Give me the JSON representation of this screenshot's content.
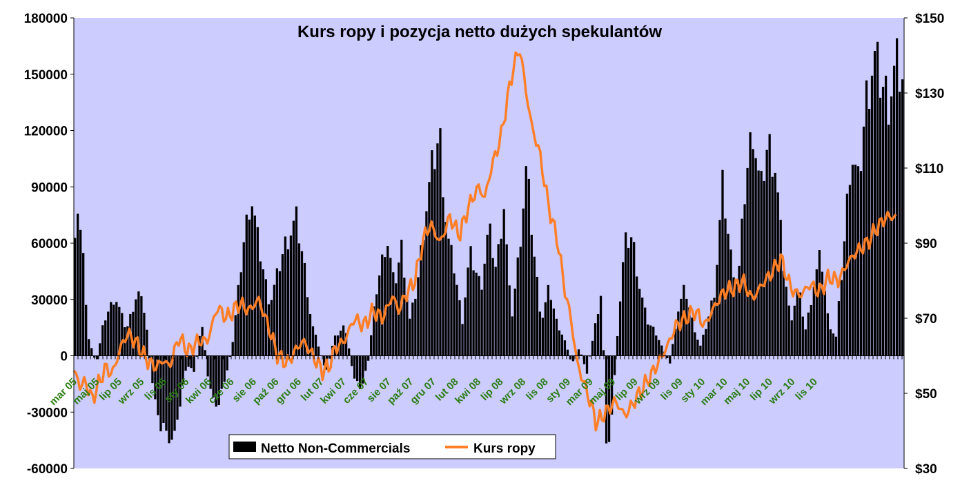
{
  "chart_data": {
    "type": "bar+line",
    "title": "Kurs ropy i pozycja netto dużych spekulantów",
    "colors": {
      "plot_background": "#ccccff",
      "bars": "#000000",
      "line": "#ff7f27",
      "x_tick_labels": "#2a7d12"
    },
    "left_axis": {
      "ticks": [
        "180000",
        "150000",
        "120000",
        "90000",
        "60000",
        "30000",
        "0",
        "-30000",
        "-60000"
      ],
      "range": [
        -60000,
        180000
      ]
    },
    "right_axis": {
      "ticks": [
        "$150",
        "$130",
        "$110",
        "$90",
        "$70",
        "$50",
        "$30"
      ],
      "range": [
        30,
        150
      ]
    },
    "x_tick_labels": [
      "mar 05",
      "maj 05",
      "lip 05",
      "wrz 05",
      "lis 05",
      "sty 06",
      "kwi 06",
      "cze 06",
      "sie 06",
      "paź 06",
      "gru 06",
      "lut 07",
      "kwi 07",
      "cze 07",
      "sie 07",
      "paź 07",
      "gru 07",
      "lut 08",
      "kwi 08",
      "lip 08",
      "wrz 08",
      "lis 08",
      "sty 09",
      "mar 09",
      "maj 09",
      "lip 09",
      "wrz 09",
      "lis 09",
      "sty 10",
      "mar 10",
      "maj 10",
      "lip 10",
      "wrz 10",
      "lis 10"
    ],
    "legend": {
      "bars_label": "Netto Non-Commercials",
      "line_label": "Kurs ropy"
    },
    "series": [
      {
        "name": "Netto Non-Commercials",
        "kind": "bar",
        "anchors": [
          [
            0,
            70000
          ],
          [
            0.005,
            88000
          ],
          [
            0.012,
            60000
          ],
          [
            0.02,
            10000
          ],
          [
            0.03,
            -5000
          ],
          [
            0.04,
            20000
          ],
          [
            0.055,
            35000
          ],
          [
            0.07,
            15000
          ],
          [
            0.085,
            38000
          ],
          [
            0.095,
            25000
          ],
          [
            0.105,
            -20000
          ],
          [
            0.115,
            -40000
          ],
          [
            0.125,
            -45000
          ],
          [
            0.13,
            -55000
          ],
          [
            0.14,
            -30000
          ],
          [
            0.15,
            -5000
          ],
          [
            0.16,
            -10000
          ],
          [
            0.17,
            20000
          ],
          [
            0.18,
            -20000
          ],
          [
            0.19,
            -30000
          ],
          [
            0.2,
            -15000
          ],
          [
            0.21,
            5000
          ],
          [
            0.225,
            65000
          ],
          [
            0.235,
            95000
          ],
          [
            0.245,
            65000
          ],
          [
            0.26,
            30000
          ],
          [
            0.28,
            65000
          ],
          [
            0.295,
            80000
          ],
          [
            0.305,
            55000
          ],
          [
            0.315,
            20000
          ],
          [
            0.325,
            5000
          ],
          [
            0.335,
            -10000
          ],
          [
            0.345,
            10000
          ],
          [
            0.36,
            18000
          ],
          [
            0.37,
            -10000
          ],
          [
            0.38,
            -20000
          ],
          [
            0.39,
            -5000
          ],
          [
            0.4,
            35000
          ],
          [
            0.415,
            70000
          ],
          [
            0.425,
            40000
          ],
          [
            0.435,
            65000
          ],
          [
            0.445,
            20000
          ],
          [
            0.455,
            40000
          ],
          [
            0.465,
            80000
          ],
          [
            0.475,
            110000
          ],
          [
            0.485,
            130000
          ],
          [
            0.495,
            70000
          ],
          [
            0.505,
            50000
          ],
          [
            0.515,
            20000
          ],
          [
            0.525,
            60000
          ],
          [
            0.54,
            40000
          ],
          [
            0.55,
            75000
          ],
          [
            0.56,
            50000
          ],
          [
            0.57,
            90000
          ],
          [
            0.58,
            20000
          ],
          [
            0.59,
            60000
          ],
          [
            0.6,
            110000
          ],
          [
            0.61,
            60000
          ],
          [
            0.62,
            20000
          ],
          [
            0.63,
            40000
          ],
          [
            0.64,
            20000
          ],
          [
            0.65,
            10000
          ],
          [
            0.66,
            -5000
          ],
          [
            0.67,
            5000
          ],
          [
            0.68,
            -10000
          ],
          [
            0.69,
            15000
          ],
          [
            0.7,
            40000
          ],
          [
            0.705,
            -45000
          ],
          [
            0.71,
            -55000
          ],
          [
            0.72,
            10000
          ],
          [
            0.73,
            65000
          ],
          [
            0.74,
            70000
          ],
          [
            0.75,
            40000
          ],
          [
            0.76,
            20000
          ],
          [
            0.77,
            15000
          ],
          [
            0.78,
            5000
          ],
          [
            0.79,
            -5000
          ],
          [
            0.8,
            25000
          ],
          [
            0.81,
            40000
          ],
          [
            0.82,
            20000
          ],
          [
            0.83,
            5000
          ],
          [
            0.84,
            20000
          ],
          [
            0.85,
            40000
          ],
          [
            0.86,
            100000
          ],
          [
            0.87,
            60000
          ],
          [
            0.88,
            40000
          ],
          [
            0.89,
            100000
          ],
          [
            0.9,
            135000
          ],
          [
            0.91,
            95000
          ],
          [
            0.92,
            125000
          ],
          [
            0.93,
            110000
          ],
          [
            0.94,
            55000
          ],
          [
            0.95,
            20000
          ],
          [
            0.96,
            40000
          ],
          [
            0.97,
            15000
          ],
          [
            0.98,
            40000
          ],
          [
            0.99,
            60000
          ],
          [
            1.0,
            20000
          ],
          [
            1.01,
            10000
          ],
          [
            1.02,
            60000
          ],
          [
            1.03,
            120000
          ],
          [
            1.04,
            100000
          ],
          [
            1.05,
            150000
          ],
          [
            1.06,
            175000
          ],
          [
            1.07,
            160000
          ],
          [
            1.08,
            150000
          ],
          [
            1.09,
            170000
          ],
          [
            1.1,
            160000
          ]
        ]
      },
      {
        "name": "Kurs ropy",
        "kind": "line",
        "anchors": [
          [
            0,
            56
          ],
          [
            0.01,
            52
          ],
          [
            0.02,
            53
          ],
          [
            0.028,
            48
          ],
          [
            0.04,
            53
          ],
          [
            0.05,
            57
          ],
          [
            0.06,
            55
          ],
          [
            0.075,
            63
          ],
          [
            0.085,
            66
          ],
          [
            0.1,
            63
          ],
          [
            0.11,
            60
          ],
          [
            0.12,
            58
          ],
          [
            0.13,
            57
          ],
          [
            0.14,
            59
          ],
          [
            0.15,
            57
          ],
          [
            0.165,
            65
          ],
          [
            0.18,
            61
          ],
          [
            0.195,
            64
          ],
          [
            0.21,
            64
          ],
          [
            0.225,
            73
          ],
          [
            0.24,
            70
          ],
          [
            0.26,
            74
          ],
          [
            0.275,
            72
          ],
          [
            0.29,
            75
          ],
          [
            0.305,
            68
          ],
          [
            0.32,
            60
          ],
          [
            0.335,
            58
          ],
          [
            0.35,
            62
          ],
          [
            0.36,
            64
          ],
          [
            0.375,
            60
          ],
          [
            0.39,
            56
          ],
          [
            0.4,
            57
          ],
          [
            0.41,
            62
          ],
          [
            0.425,
            64
          ],
          [
            0.44,
            70
          ],
          [
            0.455,
            68
          ],
          [
            0.47,
            72
          ],
          [
            0.485,
            70
          ],
          [
            0.5,
            76
          ],
          [
            0.51,
            72
          ],
          [
            0.52,
            76
          ],
          [
            0.535,
            80
          ],
          [
            0.55,
            92
          ],
          [
            0.56,
            95
          ],
          [
            0.575,
            90
          ],
          [
            0.59,
            97
          ],
          [
            0.605,
            92
          ],
          [
            0.62,
            100
          ],
          [
            0.635,
            105
          ],
          [
            0.645,
            102
          ],
          [
            0.655,
            110
          ],
          [
            0.67,
            118
          ],
          [
            0.68,
            128
          ],
          [
            0.69,
            137
          ],
          [
            0.7,
            142
          ],
          [
            0.71,
            130
          ],
          [
            0.72,
            120
          ],
          [
            0.73,
            115
          ],
          [
            0.745,
            100
          ],
          [
            0.76,
            90
          ],
          [
            0.77,
            78
          ],
          [
            0.78,
            70
          ],
          [
            0.79,
            58
          ],
          [
            0.8,
            53
          ],
          [
            0.81,
            48
          ],
          [
            0.82,
            42
          ],
          [
            0.835,
            45
          ],
          [
            0.85,
            48
          ],
          [
            0.865,
            44
          ],
          [
            0.88,
            48
          ],
          [
            0.895,
            52
          ],
          [
            0.91,
            56
          ],
          [
            0.93,
            62
          ],
          [
            0.945,
            68
          ],
          [
            0.96,
            70
          ],
          [
            0.975,
            72
          ],
          [
            0.99,
            68
          ],
          [
            1.005,
            73
          ],
          [
            1.02,
            77
          ],
          [
            1.035,
            78
          ],
          [
            1.05,
            80
          ],
          [
            1.065,
            75
          ],
          [
            1.08,
            79
          ],
          [
            1.095,
            82
          ],
          [
            1.11,
            86
          ],
          [
            1.125,
            78
          ],
          [
            1.14,
            76
          ],
          [
            1.155,
            79
          ],
          [
            1.17,
            77
          ],
          [
            1.185,
            81
          ],
          [
            1.2,
            80
          ],
          [
            1.215,
            85
          ],
          [
            1.23,
            88
          ],
          [
            1.245,
            90
          ],
          [
            1.26,
            94
          ],
          [
            1.275,
            97
          ],
          [
            1.29,
            97
          ]
        ]
      }
    ]
  }
}
